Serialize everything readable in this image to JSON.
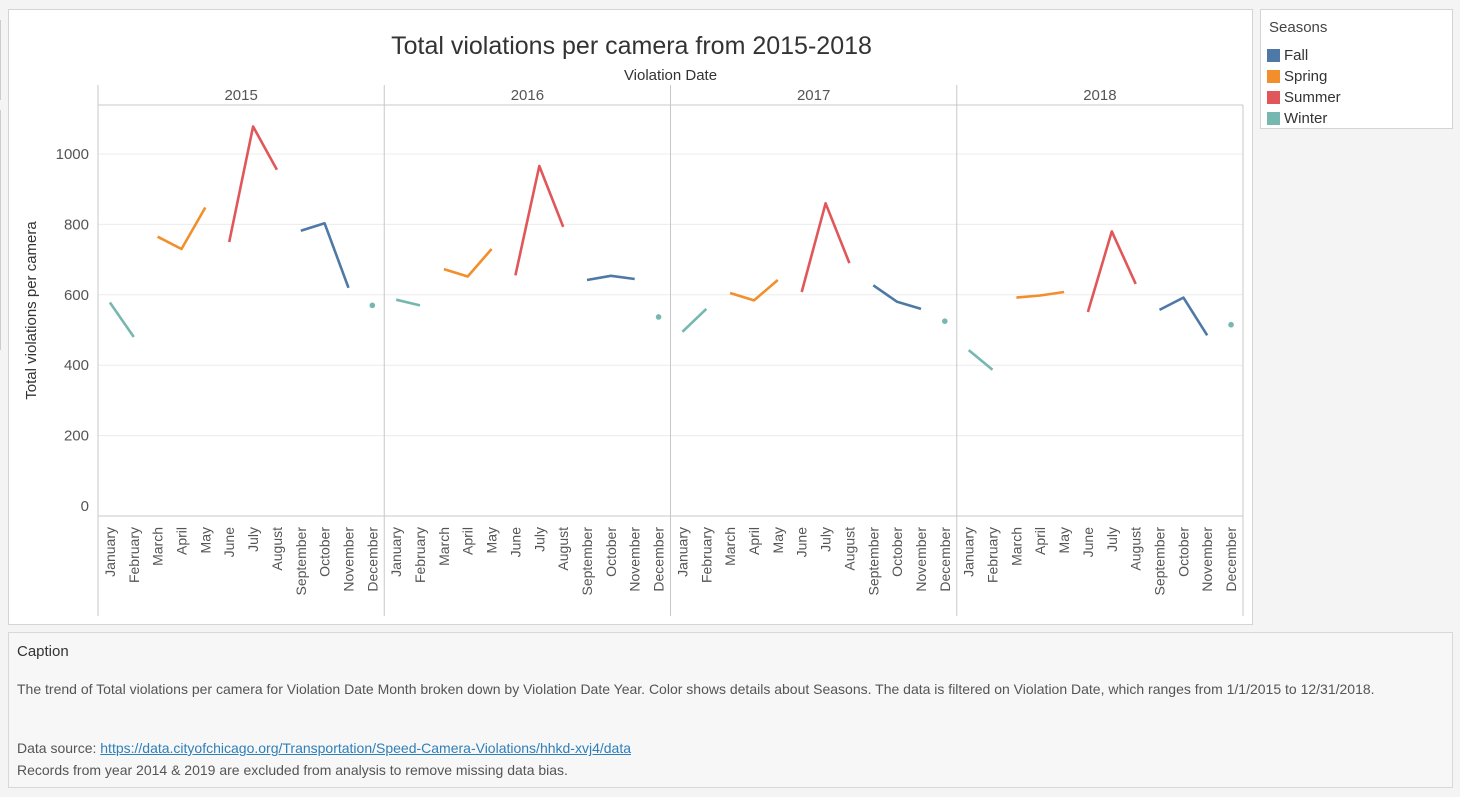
{
  "chart_data": {
    "type": "line",
    "title": "Total violations per camera from 2015-2018",
    "column_header": "Violation Date",
    "ylabel": "Total violations per camera",
    "ylim": [
      0,
      1150
    ],
    "yticks": [
      0,
      200,
      400,
      600,
      800,
      1000
    ],
    "panels": [
      "2015",
      "2016",
      "2017",
      "2018"
    ],
    "months": [
      "January",
      "February",
      "March",
      "April",
      "May",
      "June",
      "July",
      "August",
      "September",
      "October",
      "November",
      "December"
    ],
    "season_colors": {
      "Fall": "#4e79a7",
      "Spring": "#f28e2b",
      "Summer": "#e15759",
      "Winter": "#76b7b2"
    },
    "season_of_month": [
      "Winter",
      "Winter",
      "Spring",
      "Spring",
      "Spring",
      "Summer",
      "Summer",
      "Summer",
      "Fall",
      "Fall",
      "Fall",
      "Winter"
    ],
    "series": [
      {
        "year": "2015",
        "values": [
          578,
          480,
          765,
          730,
          848,
          750,
          1078,
          955,
          782,
          803,
          620,
          570
        ]
      },
      {
        "year": "2016",
        "values": [
          586,
          570,
          673,
          652,
          730,
          655,
          966,
          793,
          642,
          654,
          645,
          537
        ]
      },
      {
        "year": "2017",
        "values": [
          495,
          560,
          605,
          584,
          642,
          608,
          860,
          690,
          627,
          580,
          560,
          525
        ]
      },
      {
        "year": "2018",
        "values": [
          443,
          387,
          592,
          598,
          608,
          551,
          780,
          631,
          557,
          592,
          485,
          515
        ]
      }
    ],
    "grid": true,
    "legend_position": "right"
  },
  "legend": {
    "title": "Seasons",
    "items": [
      {
        "label": "Fall",
        "color": "#4e79a7"
      },
      {
        "label": "Spring",
        "color": "#f28e2b"
      },
      {
        "label": "Summer",
        "color": "#e15759"
      },
      {
        "label": "Winter",
        "color": "#76b7b2"
      }
    ]
  },
  "caption": {
    "title": "Caption",
    "body": "The trend of Total violations per camera for Violation Date Month broken down by Violation Date Year.  Color shows details about Seasons. The data is filtered on Violation Date, which ranges from 1/1/2015 to 12/31/2018.",
    "source_prefix": "Data source: ",
    "source_url": "https://data.cityofchicago.org/Transportation/Speed-Camera-Violations/hhkd-xvj4/data",
    "note": "Records from year 2014 & 2019 are excluded from analysis to remove missing data bias."
  }
}
